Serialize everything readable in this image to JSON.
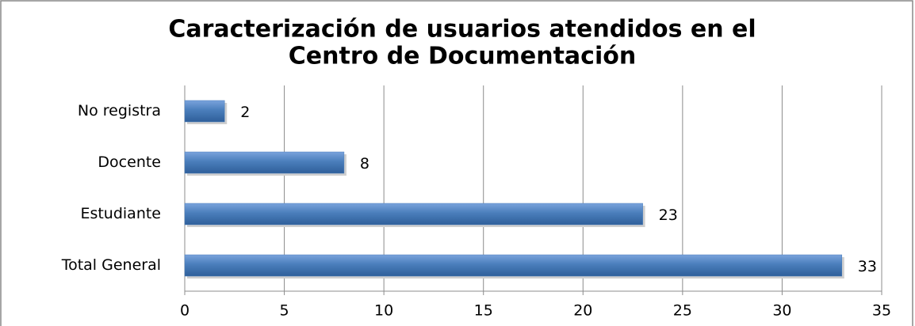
{
  "chart_data": {
    "type": "bar",
    "orientation": "horizontal",
    "title": [
      "Caracterización de usuarios atendidos en el",
      "Centro de Documentación"
    ],
    "categories": [
      "No registra",
      "Docente",
      "Estudiante",
      "Total General"
    ],
    "values": [
      2,
      8,
      23,
      33
    ],
    "color": "#4a7ebb",
    "xlim": [
      0,
      35
    ],
    "xticks": [
      0,
      5,
      10,
      15,
      20,
      25,
      30,
      35
    ],
    "grid": true
  }
}
